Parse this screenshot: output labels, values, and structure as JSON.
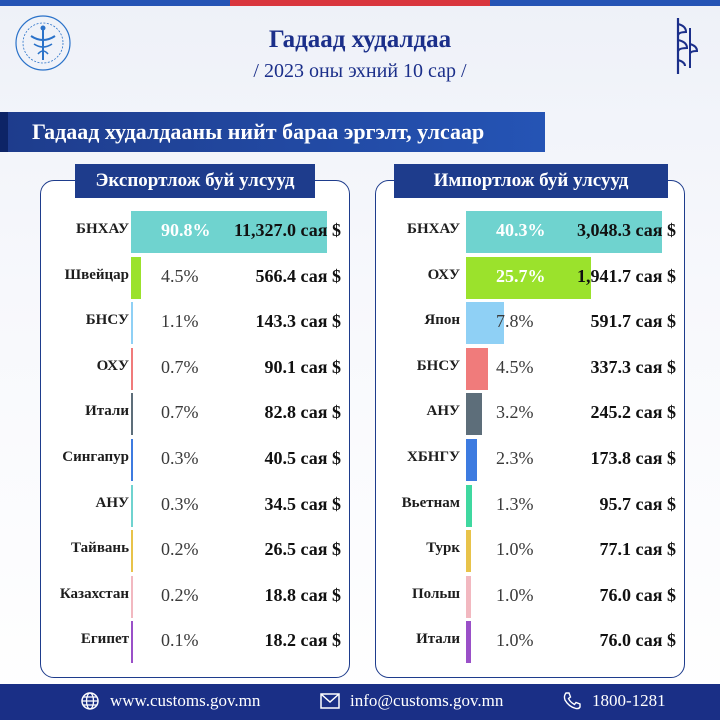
{
  "header": {
    "title": "Гадаад худалдаа",
    "subtitle": "/ 2023 оны эхний 10 сар /"
  },
  "section_title": "Гадаад худалдааны нийт бараа эргэлт, улсаар",
  "colors": {
    "brand": "#1e3c8c",
    "footer": "#1a2f86",
    "accent_red": "#d9363e"
  },
  "chart_data": [
    {
      "type": "bar",
      "title": "Экспортлож буй улсууд",
      "unit": "сая $",
      "categories": [
        "БНХАУ",
        "Швейцар",
        "БНСУ",
        "ОХУ",
        "Итали",
        "Сингапур",
        "АНУ",
        "Тайвань",
        "Казахстан",
        "Египет"
      ],
      "percent_labels": [
        "90.8%",
        "4.5%",
        "1.1%",
        "0.7%",
        "0.7%",
        "0.3%",
        "0.3%",
        "0.2%",
        "0.2%",
        "0.1%"
      ],
      "value_labels": [
        "11,327.0 сая $",
        "566.4 сая $",
        "143.3 сая $",
        "90.1 сая $",
        "82.8 сая $",
        "40.5 сая $",
        "34.5 сая $",
        "26.5 сая $",
        "18.8 сая $",
        "18.2 сая $"
      ],
      "values": [
        11327.0,
        566.4,
        143.3,
        90.1,
        82.8,
        40.5,
        34.5,
        26.5,
        18.8,
        18.2
      ],
      "percents": [
        90.8,
        4.5,
        1.1,
        0.7,
        0.7,
        0.3,
        0.3,
        0.2,
        0.2,
        0.1
      ],
      "bar_colors": [
        "#6fd3cf",
        "#9be22c",
        "#8fd0f5",
        "#f07b7b",
        "#5d6e7a",
        "#3d7be0",
        "#6fd3cf",
        "#e8c34a",
        "#f2b8c0",
        "#9a50c8"
      ]
    },
    {
      "type": "bar",
      "title": "Импортлож буй улсууд",
      "unit": "сая $",
      "categories": [
        "БНХАУ",
        "ОХУ",
        "Япон",
        "БНСУ",
        "АНУ",
        "ХБНГУ",
        "Вьетнам",
        "Турк",
        "Польш",
        "Итали"
      ],
      "percent_labels": [
        "40.3%",
        "25.7%",
        "7.8%",
        "4.5%",
        "3.2%",
        "2.3%",
        "1.3%",
        "1.0%",
        "1.0%",
        "1.0%"
      ],
      "value_labels": [
        "3,048.3 сая $",
        "1,941.7 сая $",
        "591.7 сая $",
        "337.3 сая $",
        "245.2 сая $",
        "173.8 сая $",
        "95.7 сая $",
        "77.1 сая $",
        "76.0 сая $",
        "76.0 сая $"
      ],
      "values": [
        3048.3,
        1941.7,
        591.7,
        337.3,
        245.2,
        173.8,
        95.7,
        77.1,
        76.0,
        76.0
      ],
      "percents": [
        40.3,
        25.7,
        7.8,
        4.5,
        3.2,
        2.3,
        1.3,
        1.0,
        1.0,
        1.0
      ],
      "bar_colors": [
        "#6fd3cf",
        "#9be22c",
        "#8fd0f5",
        "#f07b7b",
        "#5d6e7a",
        "#3d7be0",
        "#3fd8a0",
        "#e8c34a",
        "#f2b8c0",
        "#9a50c8"
      ]
    }
  ],
  "footer": {
    "website": "www.customs.gov.mn",
    "email": "info@customs.gov.mn",
    "phone": "1800-1281"
  }
}
